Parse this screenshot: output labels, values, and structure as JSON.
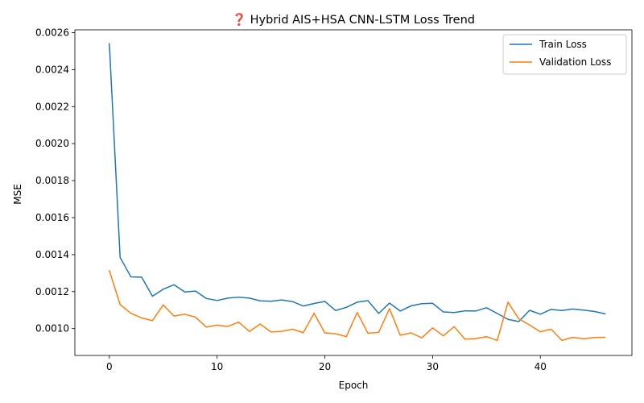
{
  "chart_data": {
    "type": "line",
    "title": "❓ Hybrid AIS+HSA CNN-LSTM Loss Trend",
    "xlabel": "Epoch",
    "ylabel": "MSE",
    "xlim": [
      -3.2,
      48.5
    ],
    "ylim": [
      0.000855,
      0.002615
    ],
    "xticks": [
      0,
      10,
      20,
      30,
      40
    ],
    "xtick_labels": [
      "0",
      "10",
      "20",
      "30",
      "40"
    ],
    "yticks": [
      0.001,
      0.0012,
      0.0014,
      0.0016,
      0.0018,
      0.002,
      0.0022,
      0.0024,
      0.0026
    ],
    "ytick_labels": [
      "0.0010",
      "0.0012",
      "0.0014",
      "0.0016",
      "0.0018",
      "0.0020",
      "0.0022",
      "0.0024",
      "0.0026"
    ],
    "grid": false,
    "legend_position": "top-right",
    "x": [
      0,
      1,
      2,
      3,
      4,
      5,
      6,
      7,
      8,
      9,
      10,
      11,
      12,
      13,
      14,
      15,
      16,
      17,
      18,
      19,
      20,
      21,
      22,
      23,
      24,
      25,
      26,
      27,
      28,
      29,
      30,
      31,
      32,
      33,
      34,
      35,
      36,
      37,
      38,
      39,
      40,
      41,
      42,
      43,
      44,
      45,
      46
    ],
    "series": [
      {
        "name": "Train Loss",
        "color": "#1f77b4",
        "values": [
          0.00254,
          0.001385,
          0.00128,
          0.001278,
          0.001175,
          0.001213,
          0.001237,
          0.001198,
          0.001203,
          0.001163,
          0.001152,
          0.001165,
          0.00117,
          0.001165,
          0.00115,
          0.001148,
          0.001155,
          0.001146,
          0.001122,
          0.001136,
          0.001147,
          0.001098,
          0.001115,
          0.001143,
          0.001151,
          0.001082,
          0.001138,
          0.001095,
          0.001123,
          0.001135,
          0.001137,
          0.00109,
          0.001087,
          0.001096,
          0.001095,
          0.001113,
          0.001082,
          0.00105,
          0.001038,
          0.001099,
          0.001078,
          0.001104,
          0.001098,
          0.001106,
          0.0011,
          0.001093,
          0.00108
        ]
      },
      {
        "name": "Validation Loss",
        "color": "#ff7f0e",
        "values": [
          0.001313,
          0.00113,
          0.001083,
          0.001058,
          0.001043,
          0.001128,
          0.001068,
          0.001078,
          0.001062,
          0.001008,
          0.001019,
          0.001012,
          0.001035,
          0.000985,
          0.001025,
          0.000982,
          0.000985,
          0.000997,
          0.000978,
          0.001083,
          0.000977,
          0.000972,
          0.000957,
          0.001087,
          0.000975,
          0.00098,
          0.001108,
          0.000964,
          0.000977,
          0.00095,
          0.001004,
          0.000961,
          0.001011,
          0.000943,
          0.000946,
          0.000957,
          0.000936,
          0.001143,
          0.001053,
          0.00102,
          0.000983,
          0.000997,
          0.000936,
          0.000953,
          0.000945,
          0.000952,
          0.000953
        ]
      }
    ]
  }
}
